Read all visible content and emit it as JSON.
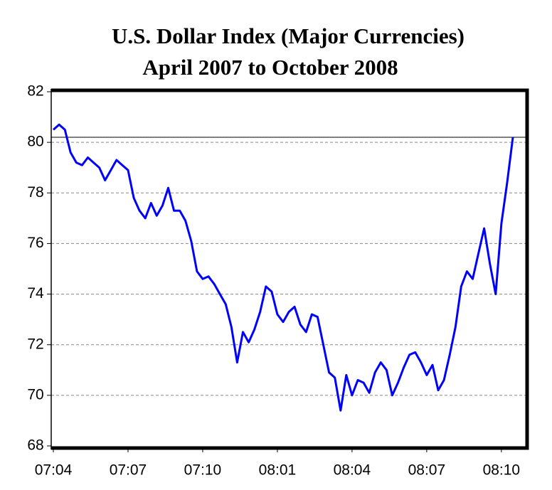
{
  "chart_data": {
    "type": "line",
    "title": "U.S. Dollar Index (Major Currencies)",
    "subtitle": "April 2007 to October 2008",
    "categories": [
      "07:04",
      null,
      null,
      null,
      null,
      null,
      null,
      null,
      null,
      null,
      null,
      null,
      null,
      "07:07",
      null,
      null,
      null,
      null,
      null,
      null,
      null,
      null,
      null,
      null,
      null,
      null,
      "07:10",
      null,
      null,
      null,
      null,
      null,
      null,
      null,
      null,
      null,
      null,
      null,
      null,
      "08:01",
      null,
      null,
      null,
      null,
      null,
      null,
      null,
      null,
      null,
      null,
      null,
      null,
      "08:04",
      null,
      null,
      null,
      null,
      null,
      null,
      null,
      null,
      null,
      null,
      null,
      null,
      "08:07",
      null,
      null,
      null,
      null,
      null,
      null,
      null,
      null,
      null,
      null,
      null,
      null,
      "08:10",
      null,
      null
    ],
    "series": [
      {
        "name": "U.S. Dollar Index",
        "color": "#0000ff",
        "values": [
          80.5,
          80.7,
          80.5,
          79.6,
          79.2,
          79.1,
          79.4,
          79.2,
          79.0,
          78.5,
          78.9,
          79.3,
          79.1,
          78.9,
          77.8,
          77.3,
          77.0,
          77.6,
          77.1,
          77.5,
          78.2,
          77.3,
          77.3,
          76.9,
          76.1,
          74.9,
          74.6,
          74.7,
          74.4,
          74.0,
          73.6,
          72.7,
          71.3,
          72.5,
          72.1,
          72.6,
          73.3,
          74.3,
          74.1,
          73.2,
          72.9,
          73.3,
          73.5,
          72.8,
          72.5,
          73.2,
          73.1,
          72.0,
          70.9,
          70.7,
          69.4,
          70.8,
          70.0,
          70.6,
          70.5,
          70.1,
          70.9,
          71.3,
          71.0,
          70.0,
          70.5,
          71.1,
          71.6,
          71.7,
          71.3,
          70.8,
          71.2,
          70.2,
          70.6,
          71.6,
          72.7,
          74.3,
          74.9,
          74.6,
          75.6,
          76.6,
          75.2,
          74.0,
          76.8,
          78.4,
          80.2
        ]
      }
    ],
    "ylim": [
      68,
      82
    ],
    "yticks": [
      68,
      70,
      72,
      74,
      76,
      78,
      80,
      82
    ],
    "grid": true
  }
}
